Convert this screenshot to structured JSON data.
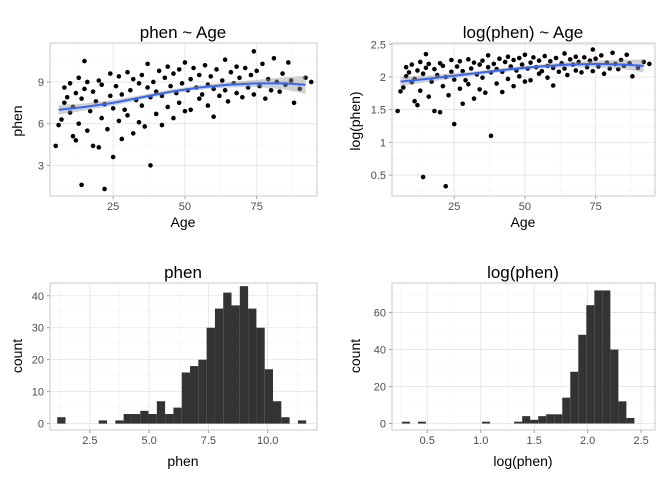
{
  "chart_data": [
    {
      "type": "scatter",
      "title": "phen ~ Age",
      "xlabel": "Age",
      "ylabel": "phen",
      "xlim": [
        3,
        96
      ],
      "ylim": [
        0.8,
        11.8
      ],
      "xticks": [
        25,
        50,
        75
      ],
      "yticks": [
        3,
        6,
        9
      ],
      "smooth": {
        "color": "#3366ff",
        "x": [
          6,
          15,
          25,
          35,
          45,
          55,
          65,
          75,
          85,
          92
        ],
        "y": [
          7.0,
          7.2,
          7.5,
          7.9,
          8.3,
          8.6,
          8.8,
          8.9,
          8.9,
          8.8
        ],
        "se_lower": [
          6.65,
          6.95,
          7.3,
          7.75,
          8.15,
          8.45,
          8.6,
          8.65,
          8.45,
          8.15
        ],
        "se_upper": [
          7.35,
          7.45,
          7.7,
          8.05,
          8.45,
          8.75,
          9.0,
          9.15,
          9.35,
          9.45
        ]
      },
      "points": [
        [
          5,
          4.4
        ],
        [
          6,
          5.9
        ],
        [
          7,
          6.3
        ],
        [
          8,
          7.5
        ],
        [
          8,
          8.6
        ],
        [
          9,
          7.9
        ],
        [
          10,
          6.8
        ],
        [
          10,
          8.9
        ],
        [
          11,
          5.1
        ],
        [
          11,
          7.2
        ],
        [
          12,
          4.8
        ],
        [
          12,
          8.2
        ],
        [
          13,
          9.3
        ],
        [
          13,
          6.0
        ],
        [
          14,
          1.6
        ],
        [
          14,
          7.8
        ],
        [
          15,
          10.5
        ],
        [
          15,
          8.5
        ],
        [
          16,
          5.5
        ],
        [
          16,
          9.0
        ],
        [
          17,
          6.9
        ],
        [
          18,
          4.4
        ],
        [
          18,
          8.3
        ],
        [
          19,
          7.6
        ],
        [
          20,
          4.3
        ],
        [
          20,
          9.1
        ],
        [
          21,
          6.4
        ],
        [
          21,
          8.8
        ],
        [
          22,
          1.3
        ],
        [
          22,
          7.4
        ],
        [
          23,
          5.6
        ],
        [
          24,
          8.0
        ],
        [
          24,
          9.6
        ],
        [
          25,
          3.6
        ],
        [
          25,
          7.1
        ],
        [
          26,
          8.7
        ],
        [
          27,
          6.2
        ],
        [
          27,
          9.4
        ],
        [
          28,
          4.9
        ],
        [
          28,
          8.1
        ],
        [
          29,
          7.0
        ],
        [
          30,
          9.7
        ],
        [
          30,
          6.6
        ],
        [
          31,
          8.4
        ],
        [
          32,
          5.3
        ],
        [
          32,
          9.2
        ],
        [
          33,
          7.7
        ],
        [
          34,
          8.9
        ],
        [
          34,
          6.1
        ],
        [
          35,
          9.5
        ],
        [
          35,
          7.3
        ],
        [
          36,
          5.8
        ],
        [
          37,
          8.6
        ],
        [
          37,
          10.3
        ],
        [
          38,
          3.0
        ],
        [
          38,
          7.9
        ],
        [
          39,
          9.0
        ],
        [
          40,
          6.7
        ],
        [
          40,
          8.3
        ],
        [
          41,
          9.8
        ],
        [
          42,
          5.9
        ],
        [
          42,
          8.0
        ],
        [
          43,
          9.3
        ],
        [
          44,
          7.2
        ],
        [
          44,
          10.1
        ],
        [
          45,
          8.7
        ],
        [
          46,
          6.4
        ],
        [
          46,
          9.6
        ],
        [
          47,
          8.2
        ],
        [
          48,
          7.5
        ],
        [
          48,
          9.9
        ],
        [
          49,
          8.9
        ],
        [
          50,
          6.9
        ],
        [
          50,
          10.4
        ],
        [
          51,
          8.4
        ],
        [
          52,
          9.2
        ],
        [
          52,
          7.0
        ],
        [
          53,
          10.0
        ],
        [
          54,
          8.6
        ],
        [
          55,
          7.8
        ],
        [
          55,
          9.5
        ],
        [
          56,
          8.1
        ],
        [
          57,
          10.2
        ],
        [
          58,
          8.8
        ],
        [
          58,
          7.3
        ],
        [
          59,
          9.4
        ],
        [
          60,
          8.5
        ],
        [
          60,
          6.5
        ],
        [
          61,
          9.9
        ],
        [
          62,
          8.0
        ],
        [
          63,
          9.1
        ],
        [
          64,
          10.6
        ],
        [
          64,
          8.4
        ],
        [
          65,
          7.6
        ],
        [
          66,
          9.7
        ],
        [
          67,
          8.9
        ],
        [
          68,
          10.1
        ],
        [
          68,
          8.2
        ],
        [
          69,
          9.3
        ],
        [
          70,
          7.9
        ],
        [
          71,
          10.0
        ],
        [
          72,
          8.6
        ],
        [
          73,
          9.5
        ],
        [
          74,
          11.2
        ],
        [
          74,
          8.1
        ],
        [
          75,
          9.8
        ],
        [
          76,
          8.7
        ],
        [
          77,
          10.3
        ],
        [
          78,
          7.8
        ],
        [
          79,
          9.2
        ],
        [
          80,
          8.4
        ],
        [
          81,
          10.7
        ],
        [
          82,
          9.0
        ],
        [
          83,
          8.3
        ],
        [
          84,
          9.6
        ],
        [
          85,
          8.8
        ],
        [
          86,
          10.4
        ],
        [
          87,
          9.1
        ],
        [
          88,
          7.5
        ],
        [
          90,
          8.5
        ],
        [
          92,
          9.3
        ],
        [
          94,
          9.0
        ]
      ]
    },
    {
      "type": "scatter",
      "title": "log(phen) ~ Age",
      "xlabel": "Age",
      "ylabel": "log(phen)",
      "xlim": [
        3,
        96
      ],
      "ylim": [
        0.18,
        2.52
      ],
      "xticks": [
        25,
        50,
        75
      ],
      "yticks": [
        0.5,
        1.0,
        1.5,
        2.0,
        2.5
      ],
      "smooth": {
        "color": "#3366ff",
        "x": [
          6,
          15,
          25,
          35,
          45,
          55,
          65,
          75,
          85,
          92
        ],
        "y": [
          1.93,
          1.97,
          2.02,
          2.07,
          2.12,
          2.16,
          2.19,
          2.2,
          2.19,
          2.17
        ],
        "se_lower": [
          1.86,
          1.92,
          1.98,
          2.04,
          2.09,
          2.13,
          2.15,
          2.15,
          2.12,
          2.07
        ],
        "se_upper": [
          2.0,
          2.02,
          2.06,
          2.1,
          2.15,
          2.19,
          2.23,
          2.25,
          2.26,
          2.27
        ]
      },
      "points": [
        [
          5,
          1.48
        ],
        [
          6,
          1.78
        ],
        [
          7,
          1.84
        ],
        [
          8,
          2.01
        ],
        [
          8,
          2.15
        ],
        [
          9,
          2.07
        ],
        [
          10,
          1.92
        ],
        [
          10,
          2.19
        ],
        [
          11,
          1.63
        ],
        [
          11,
          1.97
        ],
        [
          12,
          1.57
        ],
        [
          12,
          2.1
        ],
        [
          13,
          2.23
        ],
        [
          13,
          1.79
        ],
        [
          14,
          0.47
        ],
        [
          14,
          2.05
        ],
        [
          15,
          2.35
        ],
        [
          15,
          2.14
        ],
        [
          16,
          1.7
        ],
        [
          16,
          2.2
        ],
        [
          17,
          1.93
        ],
        [
          18,
          1.48
        ],
        [
          18,
          2.12
        ],
        [
          19,
          2.03
        ],
        [
          20,
          1.46
        ],
        [
          20,
          2.21
        ],
        [
          21,
          1.86
        ],
        [
          21,
          2.17
        ],
        [
          22,
          0.33
        ],
        [
          22,
          2.0
        ],
        [
          23,
          1.72
        ],
        [
          24,
          2.08
        ],
        [
          24,
          2.26
        ],
        [
          25,
          1.28
        ],
        [
          25,
          1.96
        ],
        [
          26,
          2.16
        ],
        [
          27,
          1.82
        ],
        [
          27,
          2.24
        ],
        [
          28,
          1.59
        ],
        [
          28,
          2.09
        ],
        [
          29,
          1.95
        ],
        [
          30,
          2.27
        ],
        [
          30,
          1.89
        ],
        [
          31,
          2.13
        ],
        [
          32,
          1.67
        ],
        [
          32,
          2.22
        ],
        [
          33,
          2.04
        ],
        [
          34,
          2.19
        ],
        [
          34,
          1.81
        ],
        [
          35,
          2.25
        ],
        [
          35,
          1.99
        ],
        [
          36,
          1.76
        ],
        [
          37,
          2.15
        ],
        [
          37,
          2.33
        ],
        [
          38,
          1.1
        ],
        [
          38,
          2.07
        ],
        [
          39,
          2.2
        ],
        [
          40,
          1.9
        ],
        [
          40,
          2.12
        ],
        [
          41,
          2.28
        ],
        [
          42,
          1.77
        ],
        [
          42,
          2.08
        ],
        [
          43,
          2.23
        ],
        [
          44,
          1.97
        ],
        [
          44,
          2.31
        ],
        [
          45,
          2.16
        ],
        [
          46,
          1.86
        ],
        [
          46,
          2.26
        ],
        [
          47,
          2.1
        ],
        [
          48,
          2.01
        ],
        [
          48,
          2.29
        ],
        [
          49,
          2.19
        ],
        [
          50,
          1.93
        ],
        [
          50,
          2.34
        ],
        [
          51,
          2.13
        ],
        [
          52,
          2.22
        ],
        [
          52,
          1.95
        ],
        [
          53,
          2.3
        ],
        [
          54,
          2.15
        ],
        [
          55,
          2.05
        ],
        [
          55,
          2.25
        ],
        [
          56,
          2.09
        ],
        [
          57,
          2.32
        ],
        [
          58,
          2.17
        ],
        [
          58,
          1.99
        ],
        [
          59,
          2.24
        ],
        [
          60,
          2.14
        ],
        [
          60,
          1.87
        ],
        [
          61,
          2.29
        ],
        [
          62,
          2.08
        ],
        [
          63,
          2.21
        ],
        [
          64,
          2.36
        ],
        [
          64,
          2.13
        ],
        [
          65,
          2.03
        ],
        [
          66,
          2.27
        ],
        [
          67,
          2.19
        ],
        [
          68,
          2.31
        ],
        [
          68,
          2.1
        ],
        [
          69,
          2.23
        ],
        [
          70,
          2.07
        ],
        [
          71,
          2.3
        ],
        [
          72,
          2.15
        ],
        [
          73,
          2.25
        ],
        [
          74,
          2.42
        ],
        [
          74,
          2.09
        ],
        [
          75,
          2.28
        ],
        [
          76,
          2.16
        ],
        [
          77,
          2.33
        ],
        [
          78,
          2.05
        ],
        [
          79,
          2.22
        ],
        [
          80,
          2.13
        ],
        [
          81,
          2.37
        ],
        [
          82,
          2.2
        ],
        [
          83,
          2.12
        ],
        [
          84,
          2.26
        ],
        [
          85,
          2.17
        ],
        [
          86,
          2.34
        ],
        [
          87,
          2.21
        ],
        [
          88,
          2.01
        ],
        [
          90,
          2.14
        ],
        [
          92,
          2.23
        ],
        [
          94,
          2.2
        ]
      ]
    },
    {
      "type": "bar",
      "title": "phen",
      "xlabel": "phen",
      "ylabel": "count",
      "xlim": [
        0.82,
        12.08
      ],
      "ylim": [
        -2,
        44
      ],
      "xticks": [
        2.5,
        5.0,
        7.5,
        10.0
      ],
      "xtick_labels": [
        "2.5",
        "5.0",
        "7.5",
        "10.0"
      ],
      "yticks": [
        0,
        10,
        20,
        30,
        40
      ],
      "bar_color": "#333333",
      "bins": [
        1.3,
        1.65,
        2.0,
        2.35,
        2.7,
        3.05,
        3.4,
        3.75,
        4.1,
        4.45,
        4.8,
        5.15,
        5.5,
        5.85,
        6.2,
        6.55,
        6.9,
        7.25,
        7.6,
        7.95,
        8.3,
        8.65,
        9.0,
        9.35,
        9.7,
        10.05,
        10.4,
        10.75,
        11.1,
        11.45
      ],
      "counts": [
        2,
        0,
        0,
        0,
        0,
        1,
        0,
        1,
        3,
        3,
        4,
        3,
        7,
        3,
        5,
        16,
        18,
        20,
        30,
        36,
        41,
        37,
        43,
        36,
        30,
        17,
        7,
        2,
        0,
        1
      ]
    },
    {
      "type": "bar",
      "title": "log(phen)",
      "xlabel": "log(phen)",
      "ylabel": "count",
      "xlim": [
        0.17,
        2.63
      ],
      "ylim": [
        -3.5,
        76
      ],
      "xticks": [
        0.5,
        1.0,
        1.5,
        2.0,
        2.5
      ],
      "xtick_labels": [
        "0.5",
        "1.0",
        "1.5",
        "2.0",
        "2.5"
      ],
      "yticks": [
        0,
        20,
        40,
        60
      ],
      "bar_color": "#333333",
      "bins": [
        0.3,
        0.375,
        0.45,
        0.525,
        0.6,
        0.675,
        0.75,
        0.825,
        0.9,
        0.975,
        1.05,
        1.125,
        1.2,
        1.275,
        1.35,
        1.425,
        1.5,
        1.575,
        1.65,
        1.725,
        1.8,
        1.875,
        1.95,
        2.025,
        2.1,
        2.175,
        2.25,
        2.325,
        2.4
      ],
      "counts": [
        1,
        0,
        1,
        0,
        0,
        0,
        0,
        0,
        0,
        0,
        1,
        0,
        0,
        0,
        1,
        4,
        2,
        4,
        5,
        5,
        14,
        28,
        48,
        64,
        72,
        72,
        40,
        12,
        3
      ]
    }
  ]
}
